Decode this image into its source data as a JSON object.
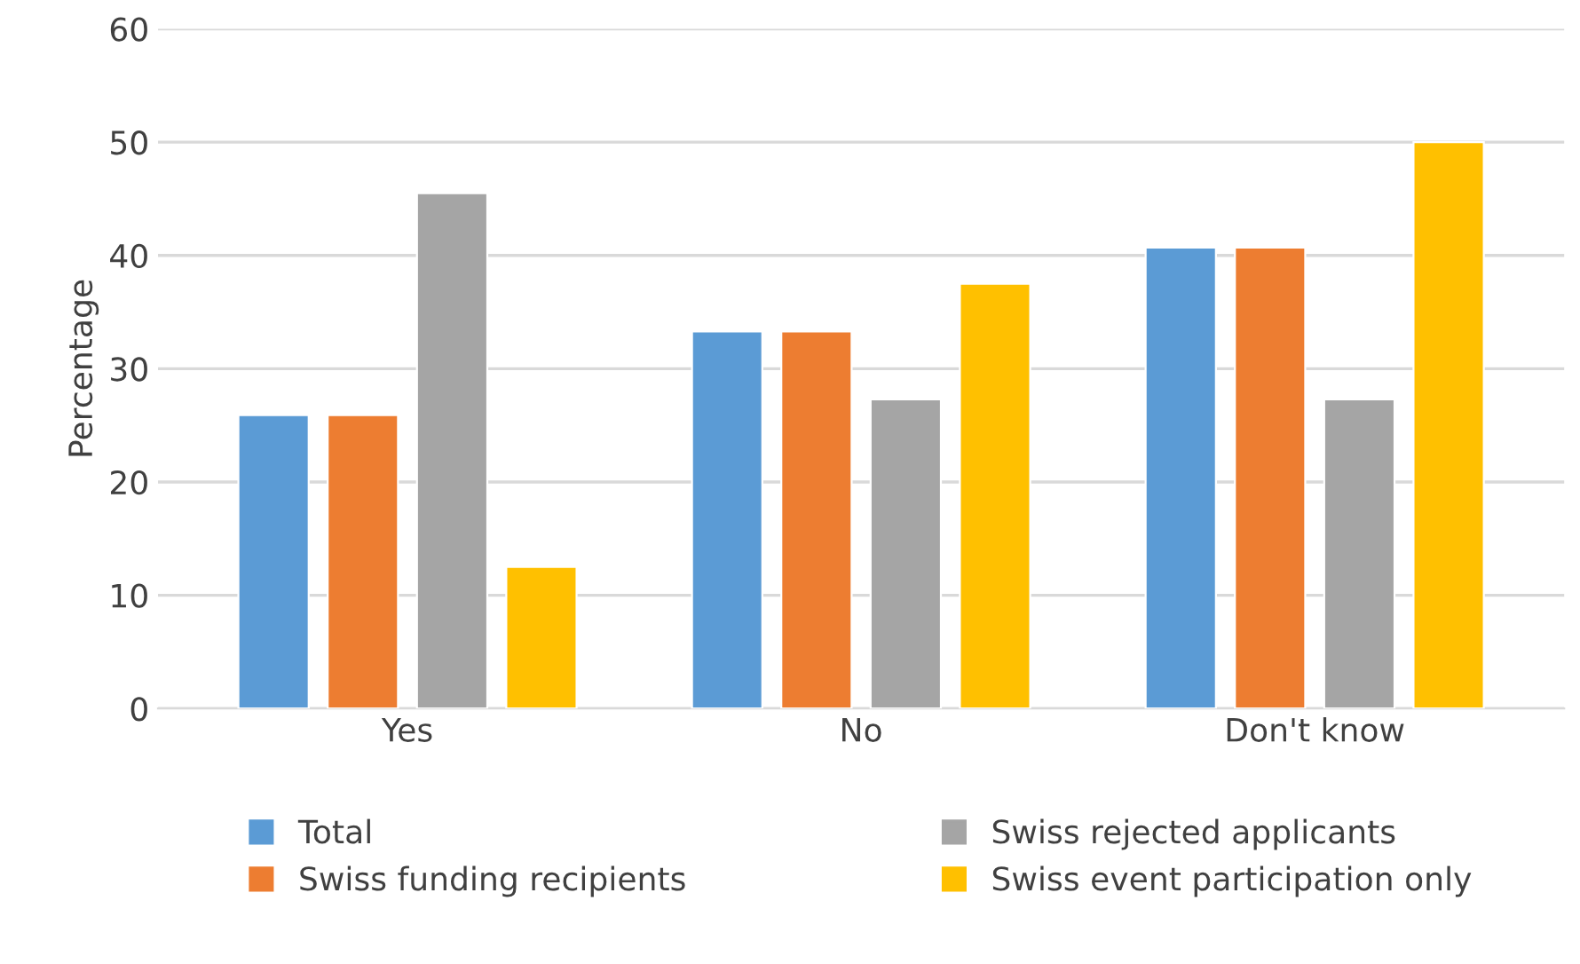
{
  "chart_data": {
    "type": "bar",
    "ylabel": "Percentage",
    "categories": [
      "Yes",
      "No",
      "Don't know"
    ],
    "series": [
      {
        "name": "Total",
        "color": "#5b9bd5",
        "values": [
          25.9,
          33.3,
          40.7
        ]
      },
      {
        "name": "Swiss funding recipients",
        "color": "#ed7d31",
        "values": [
          25.9,
          33.3,
          40.7
        ]
      },
      {
        "name": "Swiss rejected applicants",
        "color": "#a5a5a5",
        "values": [
          45.5,
          27.3,
          27.3
        ]
      },
      {
        "name": "Swiss event participation only",
        "color": "#ffc000",
        "values": [
          12.5,
          37.5,
          50.0
        ]
      }
    ],
    "ylim": [
      0,
      60
    ],
    "yticks": [
      0,
      10,
      20,
      30,
      40,
      50,
      60
    ],
    "grid": "y",
    "legend": "bottom"
  }
}
